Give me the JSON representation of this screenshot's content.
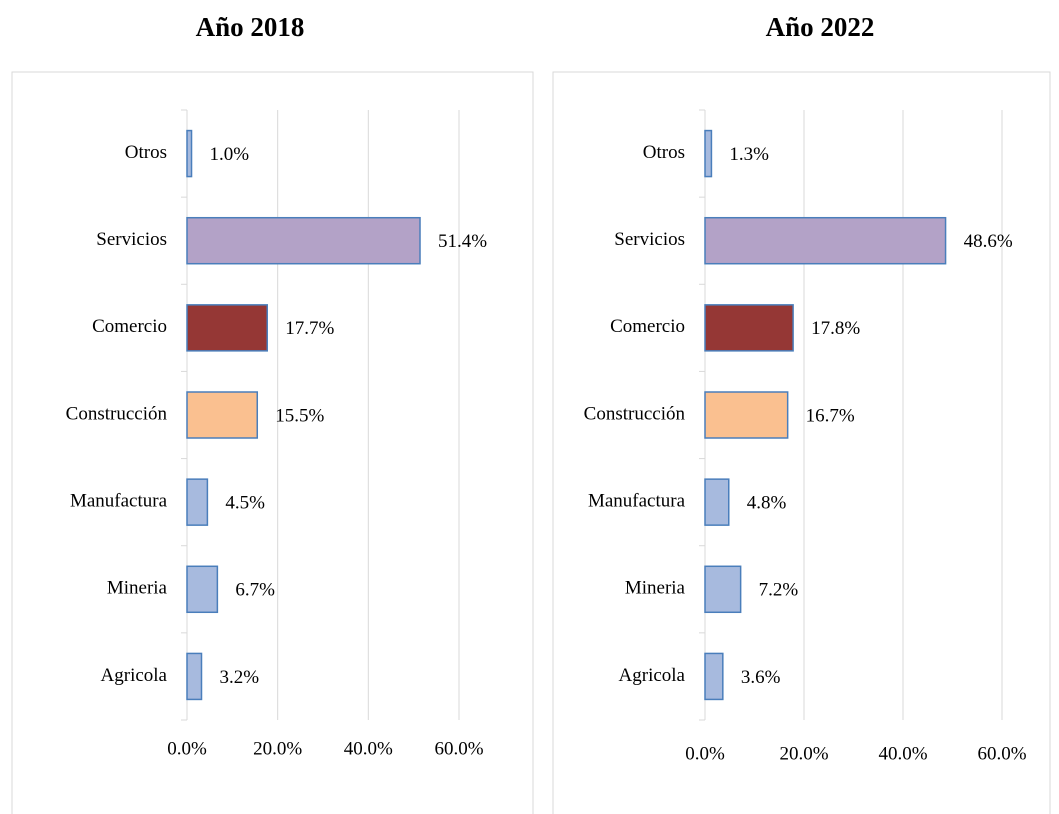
{
  "chart_data": [
    {
      "type": "barh",
      "title": "Año 2018",
      "categories": [
        "Otros",
        "Servicios",
        "Comercio",
        "Construcción",
        "Manufactura",
        "Mineria",
        "Agricola"
      ],
      "values": [
        1.0,
        51.4,
        17.7,
        15.5,
        4.5,
        6.7,
        3.2
      ],
      "value_labels": [
        "1.0%",
        "51.4%",
        "17.7%",
        "15.5%",
        "4.5%",
        "6.7%",
        "3.2%"
      ],
      "colors": [
        "#a7bade",
        "#b3a2c7",
        "#953735",
        "#fac090",
        "#a7bade",
        "#a7bade",
        "#a7bade"
      ],
      "xlim": [
        0,
        60
      ],
      "xticks": [
        {
          "value": 0,
          "label": "0.0%"
        },
        {
          "value": 20,
          "label": "20.0%"
        },
        {
          "value": 40,
          "label": "40.0%"
        },
        {
          "value": 60,
          "label": "60.0%"
        }
      ],
      "grid": true
    },
    {
      "type": "barh",
      "title": "Año 2022",
      "categories": [
        "Otros",
        "Servicios",
        "Comercio",
        "Construcción",
        "Manufactura",
        "Mineria",
        "Agricola"
      ],
      "values": [
        1.3,
        48.6,
        17.8,
        16.7,
        4.8,
        7.2,
        3.6
      ],
      "value_labels": [
        "1.3%",
        "48.6%",
        "17.8%",
        "16.7%",
        "4.8%",
        "7.2%",
        "3.6%"
      ],
      "colors": [
        "#a7bade",
        "#b3a2c7",
        "#953735",
        "#fac090",
        "#a7bade",
        "#a7bade",
        "#a7bade"
      ],
      "xlim": [
        0,
        60
      ],
      "xticks": [
        {
          "value": 0,
          "label": "0.0%"
        },
        {
          "value": 20,
          "label": "20.0%"
        },
        {
          "value": 40,
          "label": "40.0%"
        },
        {
          "value": 60,
          "label": "60.0%"
        }
      ],
      "grid": true
    }
  ]
}
